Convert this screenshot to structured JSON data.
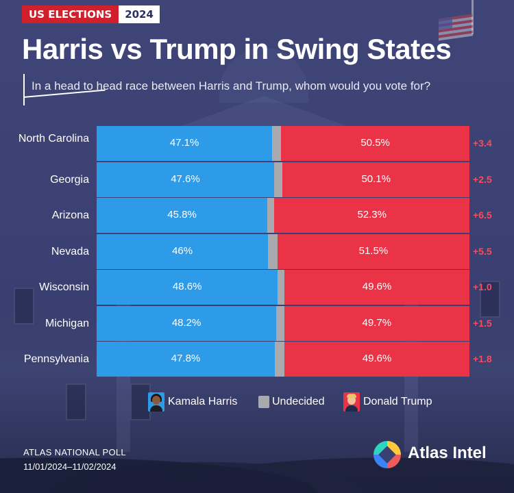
{
  "header": {
    "tag_primary": "US ELECTIONS",
    "tag_year": "2024",
    "title": "Harris vs Trump in Swing States",
    "question": "In a head to head race between Harris and Trump, whom would you vote for?"
  },
  "colors": {
    "harris": "#2d9be8",
    "undecided": "#a9a9ae",
    "trump": "#ea3346",
    "margin_text": "#ff4a5a",
    "background": "#3f4576"
  },
  "legend": [
    {
      "label": "Kamala Harris",
      "icon": "harris-portrait-icon"
    },
    {
      "label": "Undecided",
      "icon": "undecided-swatch"
    },
    {
      "label": "Donald Trump",
      "icon": "trump-portrait-icon"
    }
  ],
  "chart_data": {
    "type": "bar",
    "orientation": "horizontal-stacked-100",
    "categories": [
      "North Carolina",
      "Georgia",
      "Arizona",
      "Nevada",
      "Wisconsin",
      "Michigan",
      "Pennsylvania"
    ],
    "series": [
      {
        "name": "Kamala Harris",
        "values": [
          47.1,
          47.6,
          45.8,
          46,
          48.6,
          48.2,
          47.8
        ],
        "labels": [
          "47.1%",
          "47.6%",
          "45.8%",
          "46%",
          "48.6%",
          "48.2%",
          "47.8%"
        ]
      },
      {
        "name": "Undecided",
        "values": [
          2.4,
          2.3,
          1.9,
          2.5,
          1.8,
          2.1,
          2.6
        ],
        "labels": []
      },
      {
        "name": "Donald Trump",
        "values": [
          50.5,
          50.1,
          52.3,
          51.5,
          49.6,
          49.7,
          49.6
        ],
        "labels": [
          "50.5%",
          "50.1%",
          "52.3%",
          "51.5%",
          "49.6%",
          "49.7%",
          "49.6%"
        ]
      }
    ],
    "margins": [
      "+3.4",
      "+2.5",
      "+6.5",
      "+5.5",
      "+1.0",
      "+1.5",
      "+1.8"
    ],
    "xlim": [
      0,
      100
    ],
    "legend_position": "bottom-center",
    "grid": false
  },
  "footer": {
    "source_line1": "ATLAS NATIONAL POLL",
    "source_line2": "11/01/2024–11/02/2024",
    "logo_text": "Atlas Intel"
  }
}
